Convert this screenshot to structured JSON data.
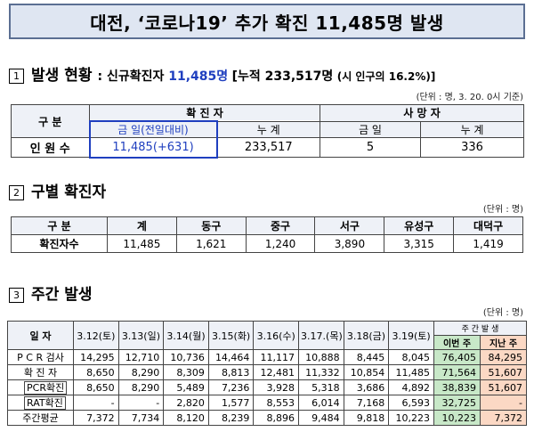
{
  "title": "대전, ‘코로나19’ 추가 확진 11,485명 발생",
  "section1": {
    "num": "1",
    "title": "발생 현황",
    "prefix": ": 신규확진자 ",
    "new_cases": "11,485명",
    "cumulative": "[누적 233,517명",
    "ratio": "(시 인구의 16.2%)]",
    "unit": "(단위 : 명, 3. 20. 0시 기준)",
    "table": {
      "col_category": "구    분",
      "col_confirmed": "확  진  자",
      "col_deaths": "사  망  자",
      "sub_today": "금  일(전일대비)",
      "sub_total": "누  계",
      "sub_today2": "금    일",
      "sub_total2": "누    계",
      "row_label": "인  원  수",
      "today": "11,485(+631)",
      "total": "233,517",
      "deaths_today": "5",
      "deaths_total": "336"
    }
  },
  "section2": {
    "num": "2",
    "title": "구별 확진자",
    "unit": "(단위 : 명)",
    "headers": [
      "구     분",
      "계",
      "동구",
      "중구",
      "서구",
      "유성구",
      "대덕구"
    ],
    "row": [
      "확진자수",
      "11,485",
      "1,621",
      "1,240",
      "3,890",
      "3,315",
      "1,419"
    ]
  },
  "section3": {
    "num": "3",
    "title": "주간 발생",
    "unit": "(단위 : 명)",
    "corner": "일    자",
    "dates": [
      "3.12(토)",
      "3.13(일)",
      "3.14(월)",
      "3.15(화)",
      "3.16(수)",
      "3.17.(목)",
      "3.18(금)",
      "3.19(토)"
    ],
    "weekly_header": "주 간 발 생",
    "this_week": "이번 주",
    "last_week": "지난 주",
    "rows": [
      {
        "label": "P C R 검사",
        "values": [
          "14,295",
          "12,710",
          "10,736",
          "14,464",
          "11,117",
          "10,888",
          "8,445",
          "8,045"
        ],
        "this_week": "76,405",
        "last_week": "84,295"
      },
      {
        "label": "확  진  자",
        "values": [
          "8,650",
          "8,290",
          "8,309",
          "8,813",
          "12,481",
          "11,332",
          "10,854",
          "11,485"
        ],
        "this_week": "71,564",
        "last_week": "51,607"
      },
      {
        "label": "PCR확진",
        "values": [
          "8,650",
          "8,290",
          "5,489",
          "7,236",
          "3,928",
          "5,318",
          "3,686",
          "4,892"
        ],
        "this_week": "38,839",
        "last_week": "51,607"
      },
      {
        "label": "RAT확진",
        "values": [
          "-",
          "-",
          "2,820",
          "1,577",
          "8,553",
          "6,014",
          "7,168",
          "6,593"
        ],
        "this_week": "32,725",
        "last_week": "-"
      },
      {
        "label": "주간평균",
        "values": [
          "7,372",
          "7,734",
          "8,120",
          "8,239",
          "8,896",
          "9,484",
          "9,818",
          "10,223"
        ],
        "this_week": "10,223",
        "last_week": "7,372"
      }
    ]
  },
  "colors": {
    "title_bg": "#dfe6f2",
    "title_border": "#5b6f93",
    "highlight_blue": "#1f3fbf",
    "this_week_bg": "#c8e8c8",
    "last_week_bg": "#fbd8c4"
  }
}
